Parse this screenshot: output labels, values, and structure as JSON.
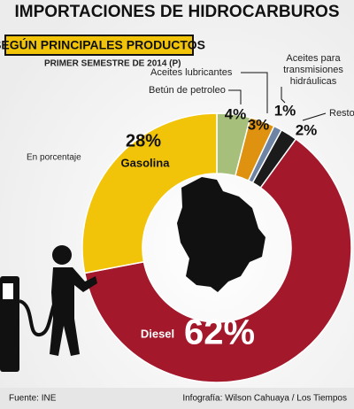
{
  "chart_data": {
    "type": "donut",
    "title": "IMPORTACIONES DE HIDROCARBUROS",
    "subtitle": "SEGÚN PRINCIPALES PRODUCTOS",
    "period": "PRIMER SEMESTRE DE 2014 (P)",
    "note": "En porcentaje",
    "source": "Fuente: INE",
    "credit": "Infografía: Wilson Cahuaya / Los Tiempos",
    "categories": [
      "Betún de petroleo",
      "Aceites lubricantes",
      "Aceites para transmisiones hidráulicas",
      "Resto",
      "Diesel",
      "Gasolina"
    ],
    "values": [
      4,
      3,
      1,
      2,
      62,
      28
    ],
    "value_labels": [
      "4%",
      "3%",
      "1%",
      "2%",
      "62%",
      "28%"
    ],
    "colors": [
      "#a6c07c",
      "#df920f",
      "#6e84a4",
      "#1b1b1b",
      "#a3182b",
      "#f1c40a"
    ]
  }
}
